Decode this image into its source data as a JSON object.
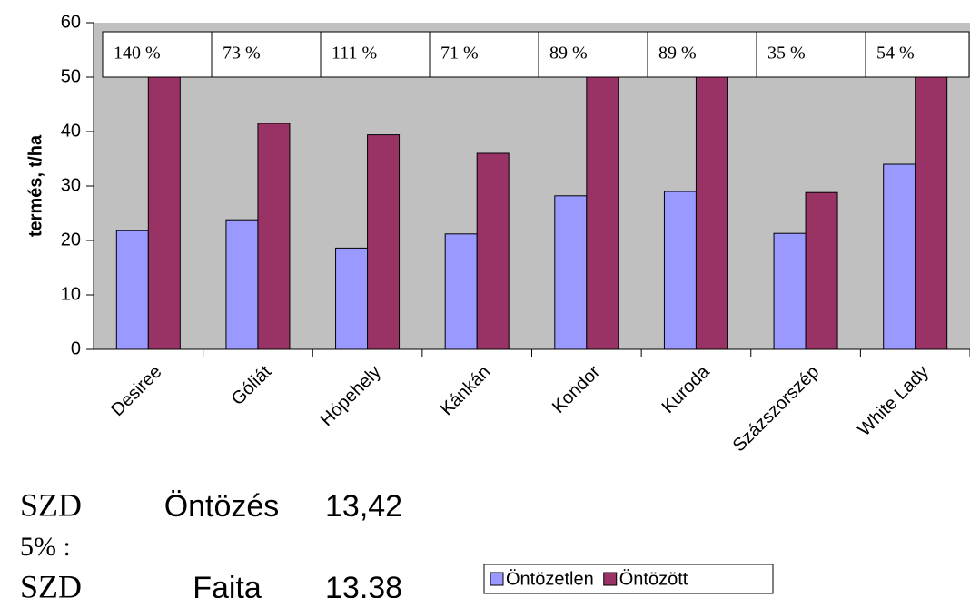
{
  "chart_data": {
    "type": "bar",
    "ylabel": "termés, t/ha",
    "categories": [
      "Desiree",
      "Góliát",
      "Hópehely",
      "Kánkán",
      "Kondor",
      "Kuroda",
      "Százszorszép",
      "White Lady"
    ],
    "series": [
      {
        "name": "Öntözetlen",
        "color": "#9999ff",
        "values": [
          21.8,
          23.8,
          18.6,
          21.2,
          28.2,
          29,
          21.3,
          34
        ]
      },
      {
        "name": "Öntözött",
        "color": "#993366",
        "values": [
          52.3,
          41.5,
          39.4,
          36,
          53.3,
          54.8,
          28.8,
          52.4
        ]
      }
    ],
    "increase_labels": [
      "140 %",
      "73 %",
      "111 %",
      "71 %",
      "89 %",
      "89 %",
      "35 %",
      "54 %"
    ],
    "ylim": [
      0,
      60
    ],
    "yticks": [
      0,
      10,
      20,
      30,
      40,
      50,
      60
    ],
    "grid": false,
    "legend": "bottom",
    "notes": [
      {
        "label": [
          "SZD",
          "5% :"
        ],
        "factor": "Öntözés",
        "value": "13,42"
      },
      {
        "label": [
          "SZD"
        ],
        "factor": "Fajta",
        "value": "13,38"
      }
    ]
  }
}
